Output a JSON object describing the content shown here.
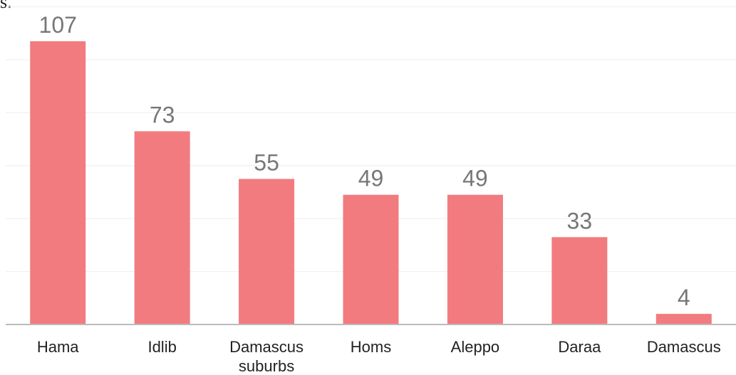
{
  "header": {
    "partial_title": "s."
  },
  "chart_data": {
    "type": "bar",
    "categories": [
      "Hama",
      "Idlib",
      "Damascus suburbs",
      "Homs",
      "Aleppo",
      "Daraa",
      "Damascus"
    ],
    "category_lines": [
      [
        "Hama"
      ],
      [
        "Idlib"
      ],
      [
        "Damascus",
        "suburbs"
      ],
      [
        "Homs"
      ],
      [
        "Aleppo"
      ],
      [
        "Daraa"
      ],
      [
        "Damascus"
      ]
    ],
    "values": [
      107,
      73,
      55,
      49,
      49,
      33,
      4
    ],
    "value_labels": [
      "107",
      "73",
      "55",
      "49",
      "49",
      "33",
      "4"
    ],
    "ylim": [
      0,
      120
    ],
    "grid": true,
    "bar_color": "#f27b7f",
    "grid_color": "#eeeeee",
    "axis_color": "#bbbbbb",
    "label_color": "#777777",
    "tick_color": "#222222"
  }
}
